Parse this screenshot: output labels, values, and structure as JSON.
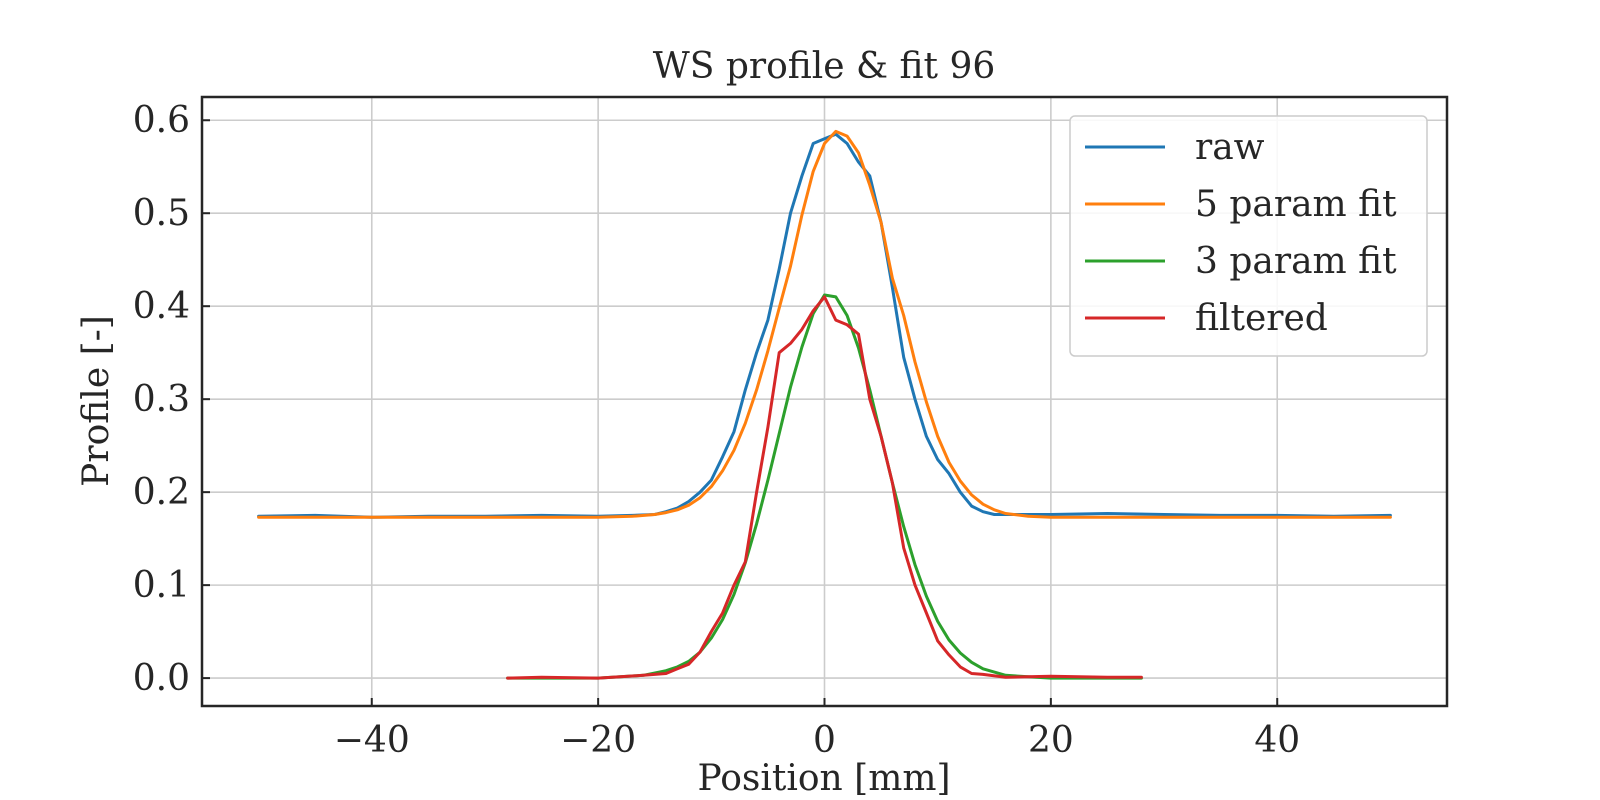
{
  "chart_data": {
    "type": "line",
    "title": "WS profile & fit 96",
    "xlabel": "Position [mm]",
    "ylabel": "Profile [-]",
    "xlim": [
      -55,
      55
    ],
    "ylim": [
      -0.03,
      0.625
    ],
    "xticks": [
      -40,
      -20,
      0,
      20,
      40
    ],
    "xtick_labels": [
      "−40",
      "−20",
      "0",
      "20",
      "40"
    ],
    "yticks": [
      0.0,
      0.1,
      0.2,
      0.3,
      0.4,
      0.5,
      0.6
    ],
    "ytick_labels": [
      "0.0",
      "0.1",
      "0.2",
      "0.3",
      "0.4",
      "0.5",
      "0.6"
    ],
    "grid": true,
    "legend": {
      "position": "top-right"
    },
    "series": [
      {
        "name": "raw",
        "color": "#1f77b4",
        "x": [
          -50,
          -45,
          -40,
          -35,
          -30,
          -25,
          -20,
          -17,
          -15,
          -14,
          -13,
          -12,
          -11,
          -10,
          -9,
          -8,
          -7,
          -6,
          -5,
          -4,
          -3,
          -2,
          -1,
          0,
          1,
          2,
          3,
          4,
          5,
          6,
          7,
          8,
          9,
          10,
          11,
          12,
          13,
          14,
          15,
          17,
          20,
          25,
          30,
          35,
          40,
          45,
          50
        ],
        "y": [
          0.174,
          0.175,
          0.173,
          0.174,
          0.174,
          0.175,
          0.174,
          0.175,
          0.176,
          0.179,
          0.183,
          0.19,
          0.2,
          0.213,
          0.238,
          0.265,
          0.31,
          0.35,
          0.385,
          0.44,
          0.5,
          0.54,
          0.575,
          0.58,
          0.585,
          0.575,
          0.555,
          0.54,
          0.49,
          0.42,
          0.345,
          0.3,
          0.26,
          0.235,
          0.22,
          0.2,
          0.185,
          0.179,
          0.176,
          0.176,
          0.176,
          0.177,
          0.176,
          0.175,
          0.175,
          0.174,
          0.175
        ]
      },
      {
        "name": "5 param fit",
        "color": "#ff7f0e",
        "x": [
          -50,
          -40,
          -30,
          -20,
          -17,
          -15,
          -14,
          -13,
          -12,
          -11,
          -10,
          -9,
          -8,
          -7,
          -6,
          -5,
          -4,
          -3,
          -2,
          -1,
          0,
          1,
          2,
          3,
          4,
          5,
          6,
          7,
          8,
          9,
          10,
          11,
          12,
          13,
          14,
          15,
          16,
          18,
          20,
          30,
          40,
          50
        ],
        "y": [
          0.173,
          0.173,
          0.173,
          0.173,
          0.174,
          0.176,
          0.178,
          0.181,
          0.186,
          0.194,
          0.206,
          0.223,
          0.245,
          0.274,
          0.31,
          0.352,
          0.398,
          0.443,
          0.498,
          0.545,
          0.575,
          0.588,
          0.583,
          0.565,
          0.53,
          0.49,
          0.43,
          0.39,
          0.34,
          0.297,
          0.26,
          0.232,
          0.212,
          0.197,
          0.187,
          0.181,
          0.177,
          0.174,
          0.173,
          0.173,
          0.173,
          0.173
        ]
      },
      {
        "name": "3 param fit",
        "color": "#2ca02c",
        "x": [
          -28,
          -20,
          -16,
          -14,
          -13,
          -12,
          -11,
          -10,
          -9,
          -8,
          -7,
          -6,
          -5,
          -4,
          -3,
          -2,
          -1,
          0,
          1,
          2,
          3,
          4,
          5,
          6,
          7,
          8,
          9,
          10,
          11,
          12,
          13,
          14,
          16,
          20,
          28
        ],
        "y": [
          0.0,
          0.0,
          0.003,
          0.008,
          0.012,
          0.018,
          0.028,
          0.043,
          0.063,
          0.09,
          0.124,
          0.166,
          0.213,
          0.263,
          0.313,
          0.356,
          0.392,
          0.412,
          0.41,
          0.39,
          0.355,
          0.31,
          0.26,
          0.21,
          0.163,
          0.122,
          0.088,
          0.061,
          0.041,
          0.027,
          0.017,
          0.01,
          0.003,
          0.0,
          0.0
        ]
      },
      {
        "name": "filtered",
        "color": "#d62728",
        "x": [
          -28,
          -25,
          -20,
          -16,
          -14,
          -13,
          -12,
          -11,
          -10,
          -9,
          -8,
          -7,
          -6,
          -5,
          -4,
          -3,
          -2,
          -1,
          0,
          1,
          2,
          3,
          4,
          5,
          6,
          7,
          8,
          9,
          10,
          11,
          12,
          13,
          14,
          16,
          20,
          25,
          28
        ],
        "y": [
          0.0,
          0.001,
          0.0,
          0.003,
          0.005,
          0.01,
          0.015,
          0.028,
          0.05,
          0.07,
          0.1,
          0.125,
          0.2,
          0.27,
          0.35,
          0.36,
          0.375,
          0.395,
          0.41,
          0.385,
          0.38,
          0.37,
          0.3,
          0.26,
          0.21,
          0.14,
          0.1,
          0.07,
          0.04,
          0.025,
          0.012,
          0.005,
          0.004,
          0.001,
          0.002,
          0.001,
          0.001
        ]
      }
    ]
  }
}
